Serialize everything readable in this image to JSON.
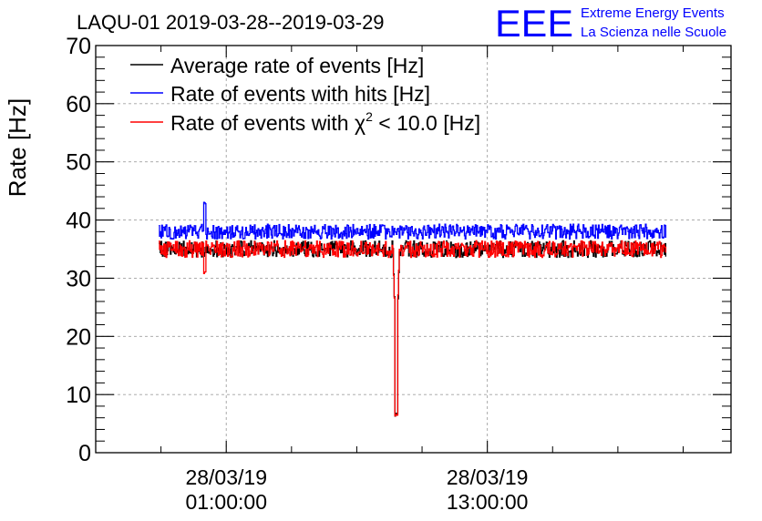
{
  "chart_data": {
    "type": "line",
    "title": "LAQU-01 2019-03-28--2019-03-29",
    "ylabel": "Rate [Hz]",
    "xlabel": "",
    "ylim": [
      0,
      70
    ],
    "y_ticks": [
      0,
      10,
      20,
      30,
      40,
      50,
      60,
      70
    ],
    "x_unit": "hours since 2019-03-28 00:00:00",
    "xlim": [
      -5,
      24.2
    ],
    "x_ticks": [
      {
        "x": 1,
        "date": "28/03/19",
        "time": "01:00:00"
      },
      {
        "x": 13,
        "date": "28/03/19",
        "time": "13:00:00"
      }
    ],
    "grid": true,
    "legend_position": "top-left",
    "series": [
      {
        "name": "Average rate of events [Hz]",
        "color": "#000000",
        "base": 35.0,
        "noise": 0.9,
        "x_range": [
          -2.1,
          21.2
        ]
      },
      {
        "name": "Rate of events with hits [Hz]",
        "color": "#0000ff",
        "base": 38.0,
        "noise": 0.8,
        "x_range": [
          -2.1,
          21.2
        ]
      },
      {
        "name": "Rate of events with χ² < 10.0 [Hz]",
        "color": "#ff0000",
        "base": 35.0,
        "noise": 0.9,
        "x_range": [
          -2.1,
          21.2
        ]
      }
    ],
    "features": [
      {
        "series": 1,
        "x": 0.0,
        "value": 43.0,
        "kind": "spike"
      },
      {
        "series": 2,
        "x": 0.0,
        "value": 31.0,
        "kind": "dip"
      },
      {
        "series": 2,
        "x": 8.8,
        "value": 6.5,
        "kind": "dip"
      },
      {
        "series": 0,
        "x": 8.8,
        "value": 6.5,
        "kind": "dip"
      }
    ]
  },
  "legend_parts": {
    "chi_prefix": "Rate of events with ",
    "chi_symbol": "χ",
    "chi_exp": "2",
    "chi_suffix": " < 10.0 [Hz]"
  },
  "logo": {
    "mark": "EEE",
    "line1": "Extreme Energy Events",
    "line2": "La Scienza nelle Scuole",
    "color": "#0000ff"
  }
}
